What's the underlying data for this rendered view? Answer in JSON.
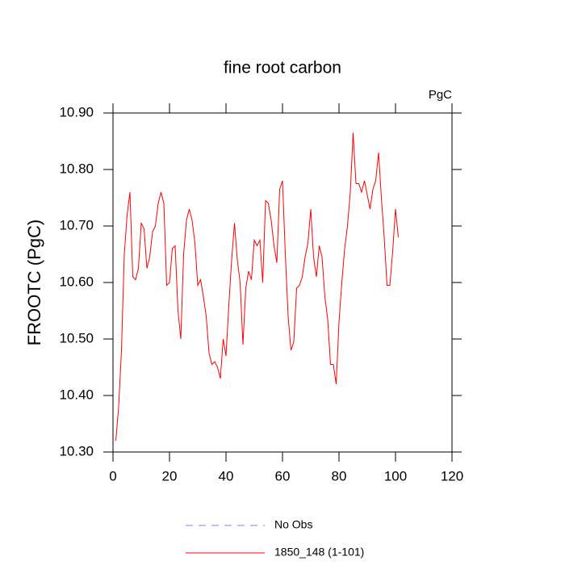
{
  "chart_data": {
    "type": "line",
    "title": "fine root carbon",
    "units": "PgC",
    "ylabel": "FROOTC  (PgC)",
    "x": [
      1,
      2,
      3,
      4,
      5,
      6,
      7,
      8,
      9,
      10,
      11,
      12,
      13,
      14,
      15,
      16,
      17,
      18,
      19,
      20,
      21,
      22,
      23,
      24,
      25,
      26,
      27,
      28,
      29,
      30,
      31,
      32,
      33,
      34,
      35,
      36,
      37,
      38,
      39,
      40,
      41,
      42,
      43,
      44,
      45,
      46,
      47,
      48,
      49,
      50,
      51,
      52,
      53,
      54,
      55,
      56,
      57,
      58,
      59,
      60,
      61,
      62,
      63,
      64,
      65,
      66,
      67,
      68,
      69,
      70,
      71,
      72,
      73,
      74,
      75,
      76,
      77,
      78,
      79,
      80,
      81,
      82,
      83,
      84,
      85,
      86,
      87,
      88,
      89,
      90,
      91,
      92,
      93,
      94,
      95,
      96,
      97,
      98,
      99,
      100,
      101
    ],
    "series": [
      {
        "name": "1850_148 (1-101)",
        "color": "#ff0000",
        "values": [
          10.32,
          10.38,
          10.48,
          10.65,
          10.72,
          10.76,
          10.61,
          10.605,
          10.625,
          10.705,
          10.695,
          10.625,
          10.645,
          10.69,
          10.7,
          10.74,
          10.76,
          10.74,
          10.595,
          10.6,
          10.66,
          10.665,
          10.55,
          10.5,
          10.65,
          10.71,
          10.73,
          10.71,
          10.67,
          10.595,
          10.605,
          10.575,
          10.54,
          10.475,
          10.455,
          10.46,
          10.45,
          10.43,
          10.5,
          10.47,
          10.56,
          10.64,
          10.705,
          10.64,
          10.6,
          10.49,
          10.59,
          10.62,
          10.605,
          10.675,
          10.665,
          10.675,
          10.6,
          10.745,
          10.74,
          10.71,
          10.665,
          10.635,
          10.765,
          10.78,
          10.65,
          10.54,
          10.48,
          10.495,
          10.59,
          10.595,
          10.61,
          10.645,
          10.67,
          10.73,
          10.645,
          10.61,
          10.665,
          10.645,
          10.575,
          10.535,
          10.455,
          10.455,
          10.42,
          10.53,
          10.6,
          10.66,
          10.7,
          10.76,
          10.865,
          10.775,
          10.775,
          10.76,
          10.78,
          10.755,
          10.73,
          10.765,
          10.78,
          10.83,
          10.75,
          10.68,
          10.595,
          10.595,
          10.655,
          10.73,
          10.68
        ]
      }
    ],
    "reference": {
      "name": "No Obs",
      "color": "#8080ff",
      "dashed": true
    },
    "xlim": [
      0,
      120
    ],
    "xticks": [
      0,
      20,
      40,
      60,
      80,
      100,
      120
    ],
    "ylim": [
      10.3,
      10.9
    ],
    "yticks": [
      {
        "value": 10.3,
        "label": "10.30"
      },
      {
        "value": 10.4,
        "label": "10.40"
      },
      {
        "value": 10.5,
        "label": "10.50"
      },
      {
        "value": 10.6,
        "label": "10.60"
      },
      {
        "value": 10.7,
        "label": "10.70"
      },
      {
        "value": 10.8,
        "label": "10.80"
      },
      {
        "value": 10.9,
        "label": "10.90"
      }
    ]
  }
}
